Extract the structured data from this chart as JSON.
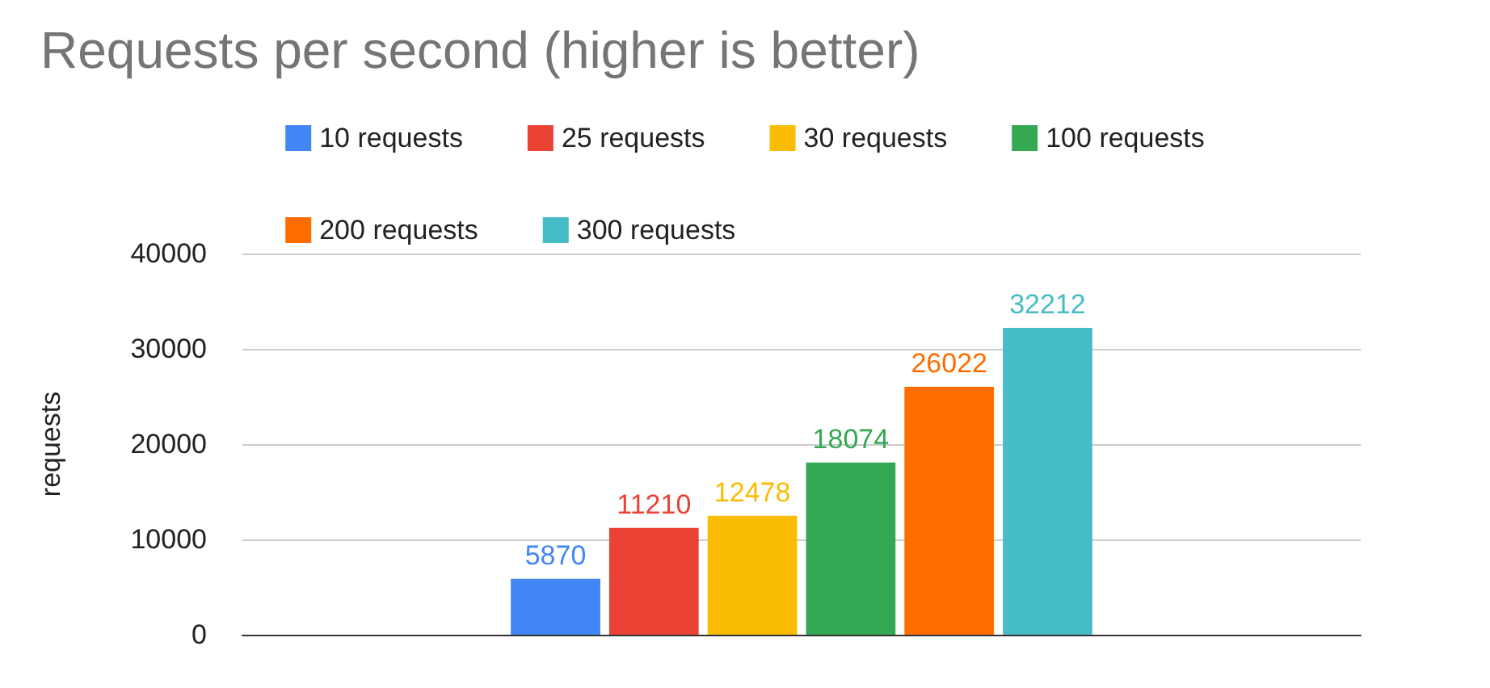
{
  "chart_data": {
    "type": "bar",
    "title": "Requests per second (higher is better)",
    "ylabel": "requests",
    "categories": [
      null
    ],
    "series": [
      {
        "name": "10 requests",
        "color": "#4285f4",
        "values": [
          5870
        ]
      },
      {
        "name": "25 requests",
        "color": "#ea4335",
        "values": [
          11210
        ]
      },
      {
        "name": "30 requests",
        "color": "#fbbc04",
        "values": [
          12478
        ]
      },
      {
        "name": "100 requests",
        "color": "#34a853",
        "values": [
          18074
        ]
      },
      {
        "name": "200 requests",
        "color": "#ff6d01",
        "values": [
          26022
        ]
      },
      {
        "name": "300 requests",
        "color": "#46bdc6",
        "values": [
          32212
        ]
      }
    ],
    "ylim": [
      0,
      40000
    ],
    "yticks": [
      0,
      10000,
      20000,
      30000,
      40000
    ],
    "grid": "y",
    "legend": "top",
    "data_labels": true
  }
}
